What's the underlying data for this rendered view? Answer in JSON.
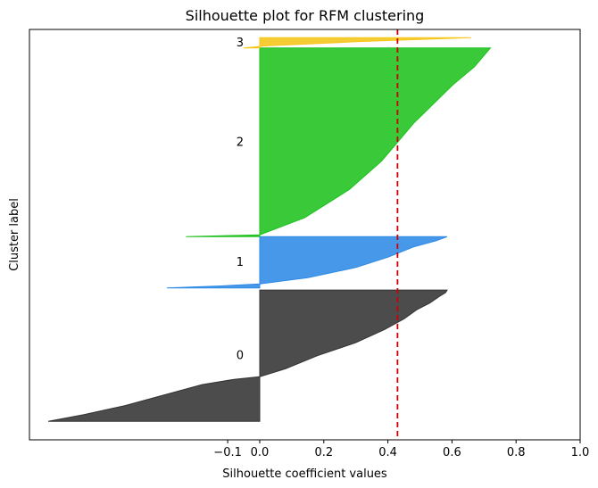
{
  "chart_data": {
    "type": "area",
    "title": "Silhouette plot for RFM clustering",
    "xlabel": "Silhouette coefficient values",
    "ylabel": "Cluster label",
    "xlim": [
      -0.72,
      1.0
    ],
    "xticks": [
      -0.1,
      0.0,
      0.2,
      0.4,
      0.6,
      0.8,
      1.0
    ],
    "xtick_labels": [
      "−0.1",
      "0.0",
      "0.2",
      "0.4",
      "0.6",
      "0.8",
      "1.0"
    ],
    "ylim": [
      0,
      100
    ],
    "yticks": "none",
    "grid": false,
    "average_silhouette": 0.43,
    "clusters": [
      {
        "label": "0",
        "color": "#333333",
        "y_lower": 4.5,
        "y_upper": 36.5,
        "profile": [
          [
            0.0,
            -0.66
          ],
          [
            0.05,
            -0.55
          ],
          [
            0.12,
            -0.42
          ],
          [
            0.2,
            -0.3
          ],
          [
            0.28,
            -0.18
          ],
          [
            0.32,
            -0.08
          ],
          [
            0.34,
            0.0
          ],
          [
            0.4,
            0.08
          ],
          [
            0.5,
            0.18
          ],
          [
            0.6,
            0.3
          ],
          [
            0.7,
            0.39
          ],
          [
            0.78,
            0.45
          ],
          [
            0.85,
            0.49
          ],
          [
            0.9,
            0.53
          ],
          [
            0.95,
            0.56
          ],
          [
            0.98,
            0.58
          ],
          [
            1.0,
            0.585
          ]
        ]
      },
      {
        "label": "1",
        "color": "#2e8ae6",
        "y_lower": 37.0,
        "y_upper": 49.5,
        "profile": [
          [
            0.0,
            -0.29
          ],
          [
            0.04,
            -0.12
          ],
          [
            0.08,
            0.0
          ],
          [
            0.2,
            0.15
          ],
          [
            0.4,
            0.3
          ],
          [
            0.6,
            0.4
          ],
          [
            0.8,
            0.48
          ],
          [
            0.92,
            0.55
          ],
          [
            1.0,
            0.585
          ]
        ]
      },
      {
        "label": "2",
        "color": "#1ec21e",
        "y_lower": 49.5,
        "y_upper": 95.5,
        "profile": [
          [
            0.0,
            -0.23
          ],
          [
            0.01,
            0.0
          ],
          [
            0.1,
            0.14
          ],
          [
            0.25,
            0.28
          ],
          [
            0.4,
            0.38
          ],
          [
            0.5,
            0.43
          ],
          [
            0.6,
            0.48
          ],
          [
            0.7,
            0.54
          ],
          [
            0.8,
            0.6
          ],
          [
            0.9,
            0.67
          ],
          [
            1.0,
            0.72
          ]
        ]
      },
      {
        "label": "3",
        "color": "#f5c518",
        "y_lower": 95.5,
        "y_upper": 98.0,
        "profile": [
          [
            0.0,
            -0.05
          ],
          [
            0.2,
            0.02
          ],
          [
            0.6,
            0.3
          ],
          [
            1.0,
            0.66
          ]
        ]
      }
    ]
  }
}
